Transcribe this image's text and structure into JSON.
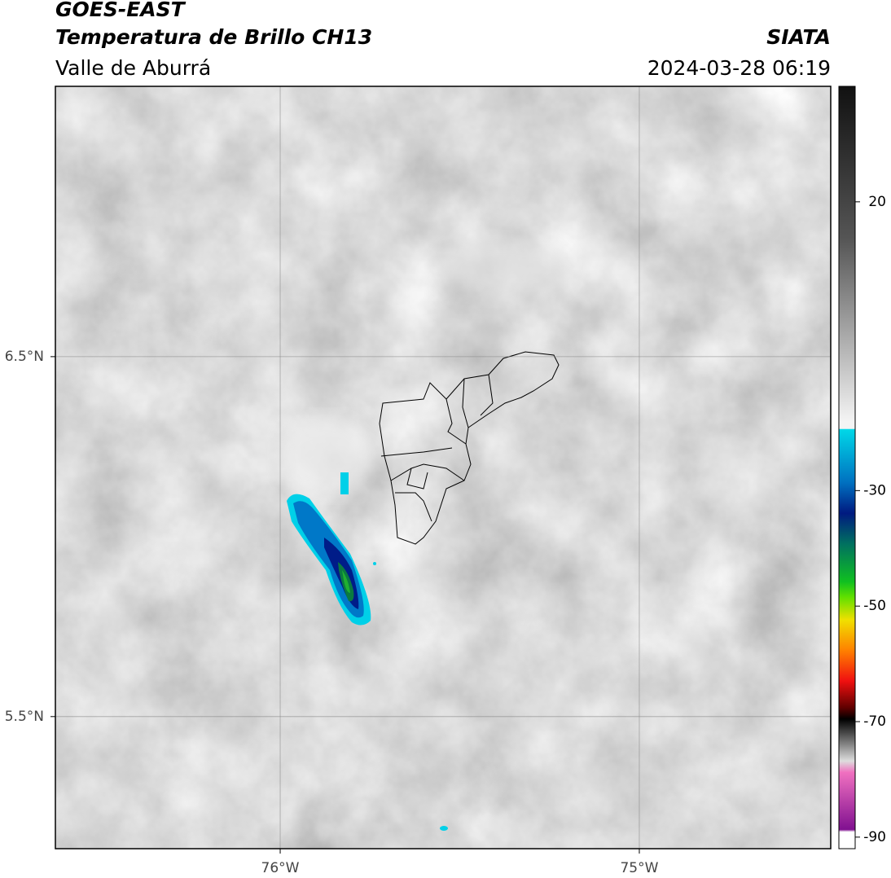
{
  "header": {
    "title": "GOES-EAST",
    "subtitle": "Temperatura de Brillo CH13",
    "region": "Valle de Aburrá",
    "source": "SIATA",
    "datetime": "2024-03-28 06:19"
  },
  "map": {
    "latlim": [
      5.133,
      7.251
    ],
    "lonlim": [
      -76.626,
      -74.467
    ],
    "lat_ticks": [
      {
        "value": 6.5,
        "label": "6.5°N"
      },
      {
        "value": 5.5,
        "label": "5.5°N"
      }
    ],
    "lon_ticks": [
      {
        "value": -76,
        "label": "76°W"
      },
      {
        "value": -75,
        "label": "75°W"
      }
    ],
    "grid": true
  },
  "colorbar": {
    "lim": [
      -92,
      40
    ],
    "ticks": [
      20,
      -30,
      -50,
      -70,
      -90
    ]
  }
}
